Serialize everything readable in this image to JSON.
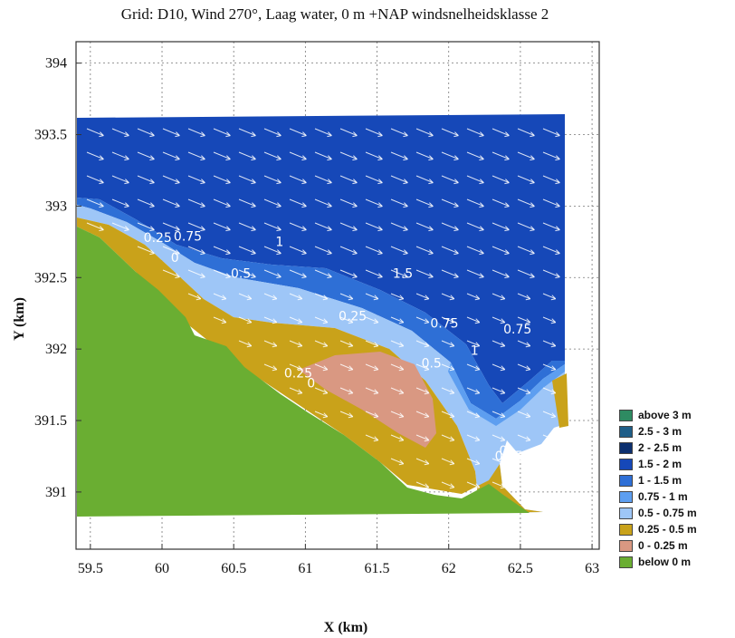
{
  "chart_data": {
    "type": "heatmap",
    "title": "Grid: D10, Wind 270°, Laag water, 0 m +NAP windsnelheidsklasse 2",
    "xlabel": "X (km)",
    "ylabel": "Y (km)",
    "xlim": [
      59.4,
      63.05
    ],
    "ylim": [
      390.6,
      394.15
    ],
    "xticks": [
      "59.5",
      "60",
      "60.5",
      "61",
      "61.5",
      "62",
      "62.5",
      "63"
    ],
    "yticks": [
      "391",
      "391.5",
      "392",
      "392.5",
      "393",
      "393.5",
      "394"
    ],
    "grid": true,
    "legend_position": "right",
    "legend": [
      {
        "label": "above 3 m",
        "color": "#2e8b62"
      },
      {
        "label": "2.5 - 3 m",
        "color": "#1f5e88"
      },
      {
        "label": "2 - 2.5 m",
        "color": "#0c2f6e"
      },
      {
        "label": "1.5 - 2 m",
        "color": "#1648b8"
      },
      {
        "label": "1 - 1.5 m",
        "color": "#2e6fd6"
      },
      {
        "label": "0.75 - 1 m",
        "color": "#5d9ef0"
      },
      {
        "label": "0.5 - 0.75 m",
        "color": "#9ec6f7"
      },
      {
        "label": "0.25 - 0.5 m",
        "color": "#c9a21a"
      },
      {
        "label": "0 - 0.25 m",
        "color": "#d99882"
      },
      {
        "label": "below 0 m",
        "color": "#6aae32"
      }
    ],
    "contour_labels": [
      {
        "text": "0.25",
        "x": 59.97,
        "y": 392.75
      },
      {
        "text": "0.75",
        "x": 60.18,
        "y": 392.76
      },
      {
        "text": "0",
        "x": 60.09,
        "y": 392.61
      },
      {
        "text": "1",
        "x": 60.82,
        "y": 392.72
      },
      {
        "text": "0.5",
        "x": 60.55,
        "y": 392.5
      },
      {
        "text": "1.5",
        "x": 61.68,
        "y": 392.5
      },
      {
        "text": "0.25",
        "x": 61.33,
        "y": 392.2
      },
      {
        "text": "0.75",
        "x": 61.97,
        "y": 392.15
      },
      {
        "text": "0.75",
        "x": 62.48,
        "y": 392.11
      },
      {
        "text": "1",
        "x": 62.18,
        "y": 391.96
      },
      {
        "text": "0.5",
        "x": 61.88,
        "y": 391.87
      },
      {
        "text": "0.25",
        "x": 60.95,
        "y": 391.8
      },
      {
        "text": "0",
        "x": 61.04,
        "y": 391.73
      },
      {
        "text": "0",
        "x": 62.38,
        "y": 391.26
      },
      {
        "text": "0.25",
        "x": 62.42,
        "y": 391.22
      }
    ]
  }
}
